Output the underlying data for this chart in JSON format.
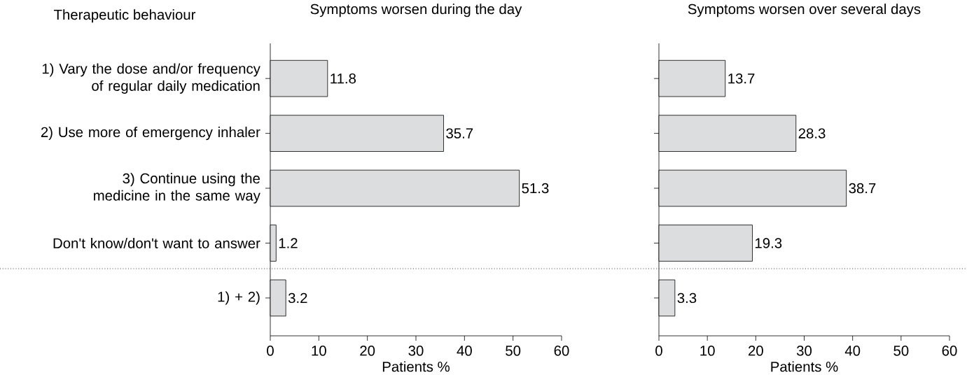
{
  "chart_data": [
    {
      "type": "bar",
      "orientation": "horizontal",
      "title": "Symptoms worsen during the day",
      "ylabel": "Therapeutic behaviour",
      "xlabel": "Patients %",
      "categories": [
        "1) Vary the dose and/or frequency of regular daily medication",
        "2) Use more of emergency inhaler",
        "3) Continue using the medicine in the same way",
        "Don't know/don't want to answer",
        "1) + 2)"
      ],
      "values": [
        11.8,
        35.7,
        51.3,
        1.2,
        3.2
      ],
      "color": "#dcdddf",
      "xlim": [
        0,
        60
      ],
      "xticks": [
        0,
        10,
        20,
        30,
        40,
        50,
        60
      ],
      "data_labels": true
    },
    {
      "type": "bar",
      "orientation": "horizontal",
      "title": "Symptoms worsen over several days",
      "xlabel": "Patients %",
      "categories": [
        null,
        null,
        null,
        null,
        null
      ],
      "values": [
        13.7,
        28.3,
        38.7,
        19.3,
        3.3
      ],
      "color": "#dcdddf",
      "xlim": [
        0,
        60
      ],
      "xticks": [
        0,
        10,
        20,
        30,
        40,
        50,
        60
      ],
      "data_labels": true,
      "tick_labels": "x"
    }
  ]
}
